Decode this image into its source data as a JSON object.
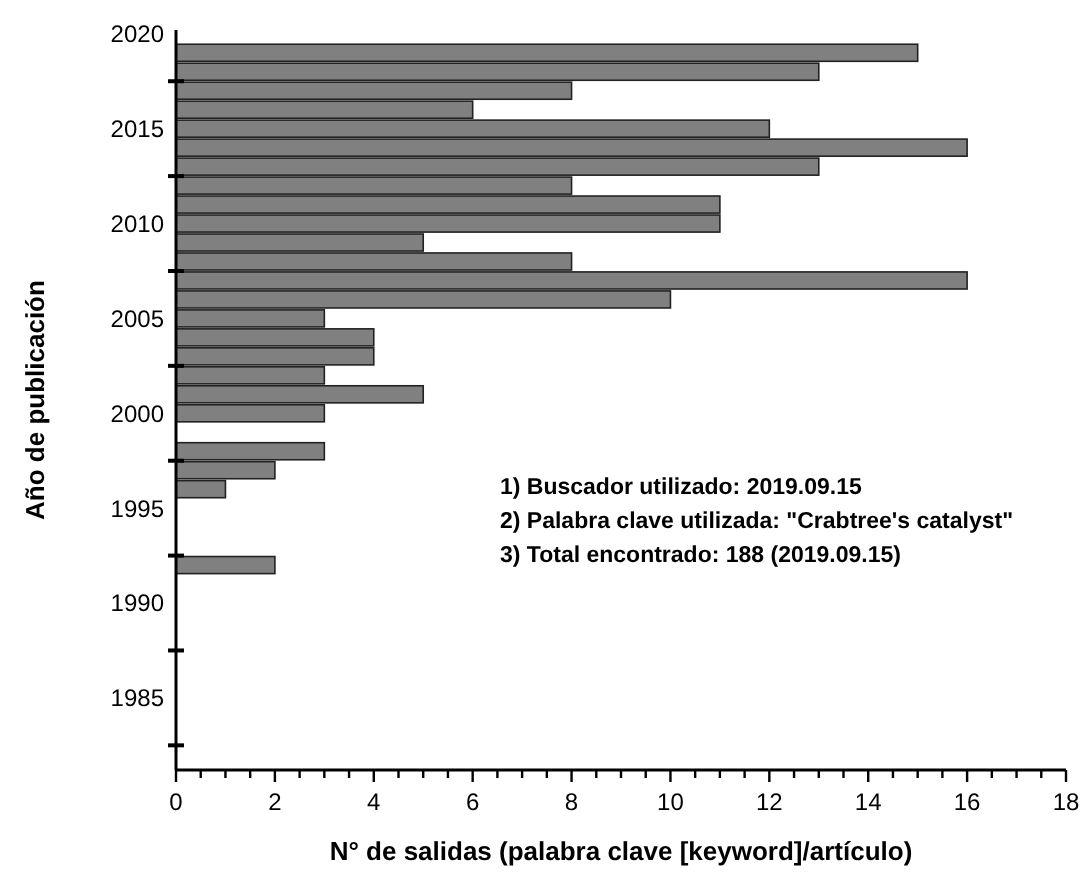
{
  "chart_data": {
    "type": "bar",
    "orientation": "horizontal",
    "xlabel": "N° de salidas (palabra clave [keyword]/artículo)",
    "ylabel": "Año de publicación",
    "x": [
      2019,
      2018,
      2017,
      2016,
      2015,
      2014,
      2013,
      2012,
      2011,
      2010,
      2009,
      2008,
      2007,
      2006,
      2005,
      2004,
      2003,
      2002,
      2001,
      2000,
      1998,
      1997,
      1996,
      1992
    ],
    "values": [
      15,
      13,
      8,
      6,
      12,
      16,
      13,
      8,
      11,
      11,
      5,
      8,
      16,
      10,
      3,
      4,
      4,
      3,
      5,
      3,
      3,
      2,
      1,
      2
    ],
    "color": "#808080",
    "xlim": [
      0,
      18
    ],
    "xticks": [
      0,
      {
        "value": 0.5,
        "label": null
      },
      {
        "value": 1,
        "label": null
      },
      {
        "value": 1.5,
        "label": null
      },
      2,
      {
        "value": 2.5,
        "label": null
      },
      {
        "value": 3,
        "label": null
      },
      {
        "value": 3.5,
        "label": null
      },
      4,
      {
        "value": 4.5,
        "label": null
      },
      {
        "value": 5,
        "label": null
      },
      {
        "value": 5.5,
        "label": null
      },
      6,
      {
        "value": 6.5,
        "label": null
      },
      {
        "value": 7,
        "label": null
      },
      {
        "value": 7.5,
        "label": null
      },
      8,
      {
        "value": 8.5,
        "label": null
      },
      {
        "value": 9,
        "label": null
      },
      {
        "value": 9.5,
        "label": null
      },
      10,
      {
        "value": 10.5,
        "label": null
      },
      {
        "value": 11,
        "label": null
      },
      {
        "value": 11.5,
        "label": null
      },
      12,
      {
        "value": 12.5,
        "label": null
      },
      {
        "value": 13,
        "label": null
      },
      {
        "value": 13.5,
        "label": null
      },
      14,
      {
        "value": 14.5,
        "label": null
      },
      {
        "value": 15,
        "label": null
      },
      {
        "value": 15.5,
        "label": null
      },
      16,
      {
        "value": 16.5,
        "label": null
      },
      {
        "value": 17,
        "label": null
      },
      {
        "value": 17.5,
        "label": null
      },
      18
    ],
    "ylim": [
      1981.2,
      2020.2
    ],
    "yticks": [
      {
        "value": 1982.5,
        "label": null
      },
      1985,
      {
        "value": 1987.5,
        "label": null
      },
      1990,
      {
        "value": 1992.5,
        "label": null
      },
      1995,
      {
        "value": 1997.5,
        "label": null
      },
      2000,
      {
        "value": 2002.5,
        "label": null
      },
      2005,
      {
        "value": 2007.5,
        "label": null
      },
      2010,
      {
        "value": 2012.5,
        "label": null
      },
      2015,
      {
        "value": 2017.5,
        "label": null
      },
      2020
    ],
    "annotations": [
      "1) Buscador utilizado: 2019.09.15",
      "2) Palabra clave utilizada: \"Crabtree's catalyst\"",
      "3) Total encontrado: 188 (2019.09.15)"
    ],
    "grid": false
  }
}
